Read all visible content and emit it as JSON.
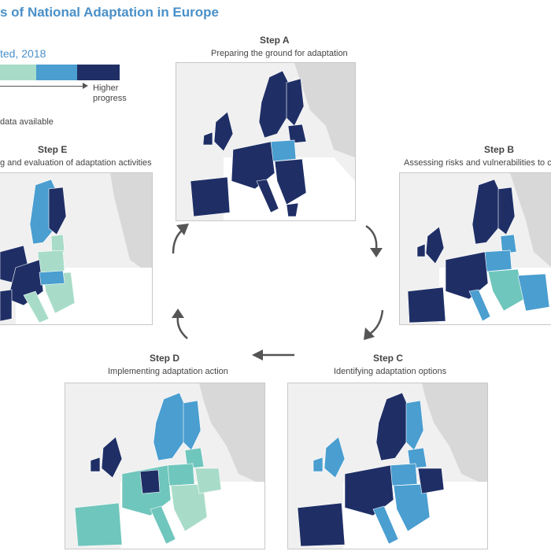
{
  "title": "s of National Adaptation in Europe",
  "legend": {
    "subtitle": "ted, 2018",
    "higher_label": "Higher\nprogress",
    "nodata_label": "data available",
    "colors": [
      "#a8dcc9",
      "#6fc6bc",
      "#4a9ed0",
      "#1f2f66"
    ]
  },
  "steps": [
    {
      "id": "A",
      "title": "Step A",
      "subtitle": "Preparing the ground for adaptation"
    },
    {
      "id": "B",
      "title": "Step B",
      "subtitle": "Assessing risks and vulnerabilities to clin"
    },
    {
      "id": "C",
      "title": "Step C",
      "subtitle": "Identifying adaptation options"
    },
    {
      "id": "D",
      "title": "Step D",
      "subtitle": "Implementing adaptation action"
    },
    {
      "id": "E",
      "title": "Step E",
      "subtitle": "g and evaluation of adaptation activities"
    }
  ],
  "cycle_arrow_icon": "cycle-arrow-icon"
}
